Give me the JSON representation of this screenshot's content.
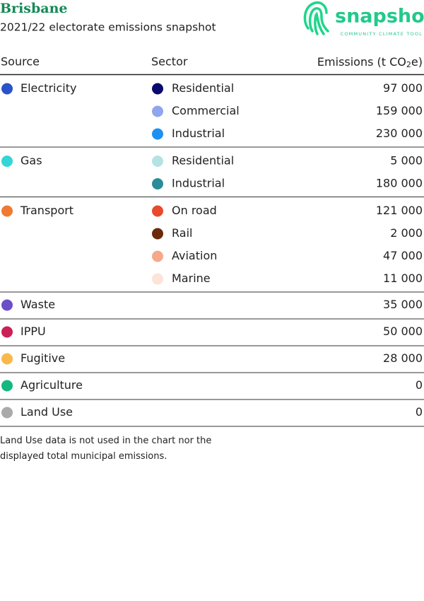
{
  "header": {
    "title": "Brisbane",
    "subtitle": "2021/22 electorate emissions snapshot",
    "logo": {
      "name": "snapshot",
      "tagline": "COMMUNITY CLIMATE TOOL"
    }
  },
  "table": {
    "columns": {
      "source": "Source",
      "sector": "Sector",
      "emissions": [
        "Emissions (t CO",
        "2",
        "e)"
      ]
    },
    "groups": [
      {
        "source": "Electricity",
        "color": "#2a52c9",
        "sectors": [
          {
            "name": "Residential",
            "color": "#0a0a6e",
            "emissions": "97 000"
          },
          {
            "name": "Commercial",
            "color": "#8ea6ee",
            "emissions": "159 000"
          },
          {
            "name": "Industrial",
            "color": "#1e90f0",
            "emissions": "230 000"
          }
        ]
      },
      {
        "source": "Gas",
        "color": "#33d6d6",
        "sectors": [
          {
            "name": "Residential",
            "color": "#b5e3e3",
            "emissions": "5 000"
          },
          {
            "name": "Industrial",
            "color": "#2a8c99",
            "emissions": "180 000"
          }
        ]
      },
      {
        "source": "Transport",
        "color": "#f07a32",
        "sectors": [
          {
            "name": "On road",
            "color": "#e84a2e",
            "emissions": "121 000"
          },
          {
            "name": "Rail",
            "color": "#6b2a0e",
            "emissions": "2 000"
          },
          {
            "name": "Aviation",
            "color": "#f5a98a",
            "emissions": "47 000"
          },
          {
            "name": "Marine",
            "color": "#fde3d8",
            "emissions": "11 000"
          }
        ]
      },
      {
        "source": "Waste",
        "color": "#6a4fc9",
        "emissions": "35 000"
      },
      {
        "source": "IPPU",
        "color": "#cc1f55",
        "emissions": "50 000"
      },
      {
        "source": "Fugitive",
        "color": "#f9b94a",
        "emissions": "28 000"
      },
      {
        "source": "Agriculture",
        "color": "#12b880",
        "emissions": "0"
      },
      {
        "source": "Land Use",
        "color": "#aaaaaa",
        "emissions": "0"
      }
    ]
  },
  "note": [
    "Land Use data is not used in the chart nor the",
    "displayed total municipal emissions."
  ]
}
